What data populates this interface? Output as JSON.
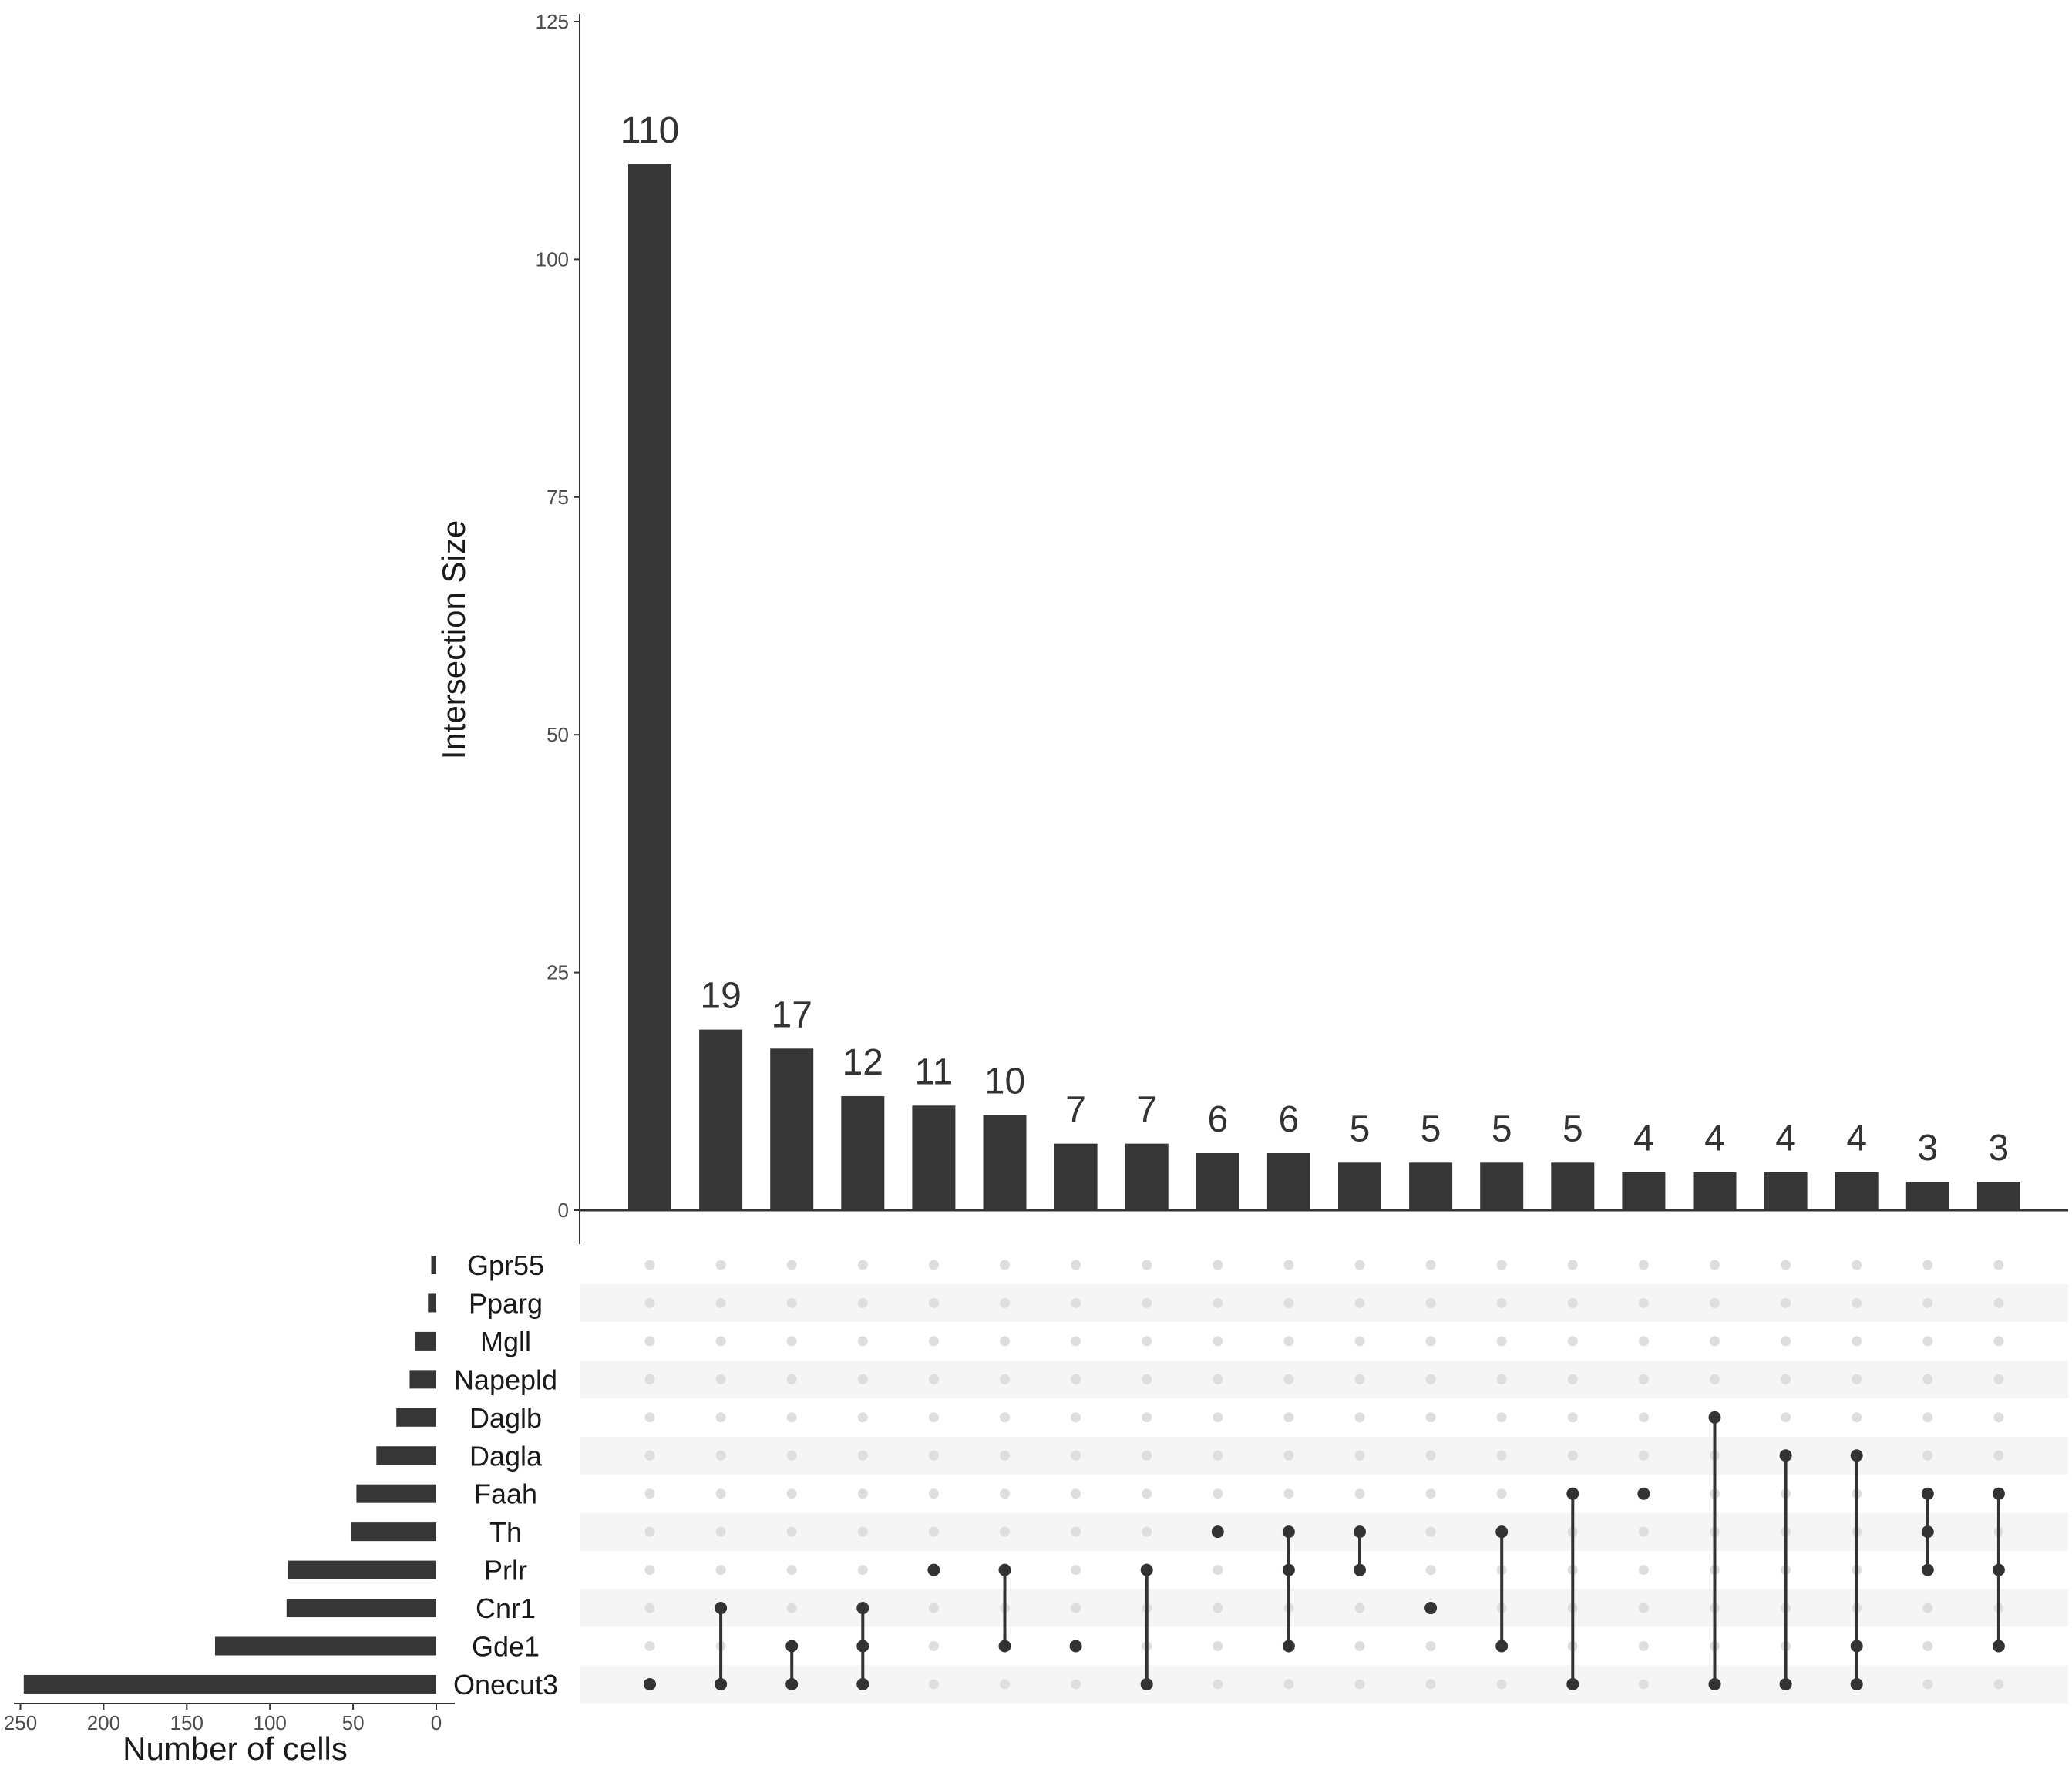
{
  "chart_data": {
    "type": "upset",
    "intersection_axis": {
      "title": "Intersection Size",
      "ylim": [
        0,
        125
      ],
      "ticks": [
        0,
        25,
        50,
        75,
        100,
        125
      ]
    },
    "set_size_axis": {
      "title": "Number of cells",
      "xlim": [
        250,
        0
      ],
      "ticks": [
        250,
        200,
        150,
        100,
        50,
        0
      ]
    },
    "sets": [
      {
        "name": "Gpr55",
        "size": 3
      },
      {
        "name": "Pparg",
        "size": 5
      },
      {
        "name": "Mgll",
        "size": 13
      },
      {
        "name": "Napepld",
        "size": 16
      },
      {
        "name": "Daglb",
        "size": 24
      },
      {
        "name": "Dagla",
        "size": 36
      },
      {
        "name": "Faah",
        "size": 48
      },
      {
        "name": "Th",
        "size": 51
      },
      {
        "name": "Prlr",
        "size": 89
      },
      {
        "name": "Cnr1",
        "size": 90
      },
      {
        "name": "Gde1",
        "size": 133
      },
      {
        "name": "Onecut3",
        "size": 248
      }
    ],
    "intersections": [
      {
        "size": 110,
        "sets": [
          "Onecut3"
        ]
      },
      {
        "size": 19,
        "sets": [
          "Cnr1",
          "Onecut3"
        ]
      },
      {
        "size": 17,
        "sets": [
          "Gde1",
          "Onecut3"
        ]
      },
      {
        "size": 12,
        "sets": [
          "Cnr1",
          "Gde1",
          "Onecut3"
        ]
      },
      {
        "size": 11,
        "sets": [
          "Prlr"
        ]
      },
      {
        "size": 10,
        "sets": [
          "Prlr",
          "Gde1"
        ]
      },
      {
        "size": 7,
        "sets": [
          "Gde1"
        ]
      },
      {
        "size": 7,
        "sets": [
          "Prlr",
          "Onecut3"
        ]
      },
      {
        "size": 6,
        "sets": [
          "Th"
        ]
      },
      {
        "size": 6,
        "sets": [
          "Th",
          "Prlr",
          "Gde1"
        ]
      },
      {
        "size": 5,
        "sets": [
          "Th",
          "Prlr"
        ]
      },
      {
        "size": 5,
        "sets": [
          "Cnr1"
        ]
      },
      {
        "size": 5,
        "sets": [
          "Th",
          "Gde1"
        ]
      },
      {
        "size": 5,
        "sets": [
          "Faah",
          "Onecut3"
        ]
      },
      {
        "size": 4,
        "sets": [
          "Faah"
        ]
      },
      {
        "size": 4,
        "sets": [
          "Daglb",
          "Onecut3"
        ]
      },
      {
        "size": 4,
        "sets": [
          "Dagla",
          "Onecut3"
        ]
      },
      {
        "size": 4,
        "sets": [
          "Dagla",
          "Gde1",
          "Onecut3"
        ]
      },
      {
        "size": 3,
        "sets": [
          "Faah",
          "Th",
          "Prlr"
        ]
      },
      {
        "size": 3,
        "sets": [
          "Faah",
          "Prlr",
          "Gde1"
        ]
      }
    ],
    "colors": {
      "bar": "#363636",
      "dot_active": "#333333",
      "dot_inactive": "#dedede",
      "stripe": "#f5f5f5",
      "axis": "#333333"
    }
  }
}
